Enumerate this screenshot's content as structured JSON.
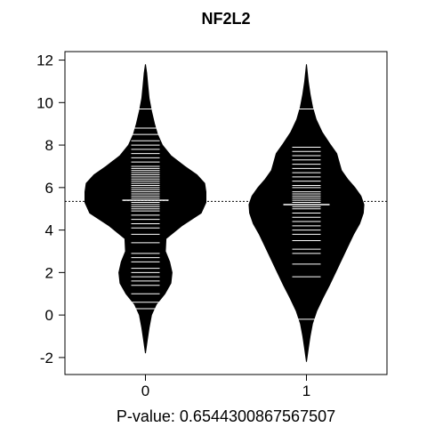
{
  "chart_data": {
    "type": "beanplot",
    "title": "NF2L2",
    "xlabel": "P-value: 0.654430086756750​7",
    "ylabel": "",
    "categories": [
      "0",
      "1"
    ],
    "ylim": [
      -2.8,
      12.4
    ],
    "xlim": [
      0.5,
      2.5
    ],
    "yticks": [
      -2,
      0,
      2,
      4,
      6,
      8,
      10,
      12
    ],
    "ytick_labels": [
      "-2",
      "0",
      "2",
      "4",
      "6",
      "8",
      "10",
      "12"
    ],
    "overall_mean": 5.35,
    "colors": {
      "bean": "#000000",
      "strip": "#ffffff",
      "frame": "#000000"
    },
    "beans": [
      {
        "category": "0",
        "mean": 5.4,
        "density": [
          [
            -1.8,
            0.0
          ],
          [
            -1.2,
            0.03
          ],
          [
            -0.6,
            0.06
          ],
          [
            0.0,
            0.1
          ],
          [
            0.5,
            0.18
          ],
          [
            1.0,
            0.32
          ],
          [
            1.5,
            0.42
          ],
          [
            2.0,
            0.44
          ],
          [
            2.5,
            0.4
          ],
          [
            3.0,
            0.33
          ],
          [
            3.6,
            0.34
          ],
          [
            4.2,
            0.6
          ],
          [
            4.8,
            0.92
          ],
          [
            5.3,
            1.0
          ],
          [
            5.8,
            1.0
          ],
          [
            6.2,
            0.98
          ],
          [
            6.6,
            0.85
          ],
          [
            7.0,
            0.65
          ],
          [
            7.5,
            0.42
          ],
          [
            8.0,
            0.28
          ],
          [
            8.5,
            0.2
          ],
          [
            9.0,
            0.15
          ],
          [
            9.6,
            0.1
          ],
          [
            10.2,
            0.06
          ],
          [
            10.8,
            0.04
          ],
          [
            11.4,
            0.02
          ],
          [
            11.8,
            0.0
          ]
        ],
        "observations": [
          0.3,
          0.6,
          1.0,
          1.4,
          1.6,
          1.8,
          2.0,
          2.2,
          2.5,
          2.7,
          2.9,
          3.4,
          3.8,
          4.1,
          4.3,
          4.5,
          4.7,
          4.9,
          5.0,
          5.1,
          5.2,
          5.3,
          5.4,
          5.5,
          5.6,
          5.7,
          5.8,
          5.9,
          6.0,
          6.1,
          6.2,
          6.3,
          6.4,
          6.5,
          6.6,
          6.7,
          6.8,
          6.9,
          7.0,
          7.2,
          7.4,
          7.6,
          7.8,
          8.0,
          8.2,
          8.5,
          8.8,
          9.7
        ]
      },
      {
        "category": "1",
        "mean": 5.2,
        "density": [
          [
            -2.2,
            0.0
          ],
          [
            -1.6,
            0.03
          ],
          [
            -1.0,
            0.06
          ],
          [
            -0.4,
            0.1
          ],
          [
            0.2,
            0.17
          ],
          [
            0.8,
            0.27
          ],
          [
            1.4,
            0.38
          ],
          [
            2.0,
            0.48
          ],
          [
            2.6,
            0.58
          ],
          [
            3.2,
            0.68
          ],
          [
            3.8,
            0.78
          ],
          [
            4.3,
            0.88
          ],
          [
            4.8,
            0.94
          ],
          [
            5.2,
            0.95
          ],
          [
            5.6,
            0.9
          ],
          [
            6.0,
            0.8
          ],
          [
            6.4,
            0.68
          ],
          [
            6.8,
            0.58
          ],
          [
            7.2,
            0.54
          ],
          [
            7.6,
            0.5
          ],
          [
            8.0,
            0.4
          ],
          [
            8.6,
            0.26
          ],
          [
            9.2,
            0.16
          ],
          [
            9.8,
            0.1
          ],
          [
            10.4,
            0.06
          ],
          [
            11.0,
            0.03
          ],
          [
            11.8,
            0.0
          ]
        ],
        "observations": [
          -0.2,
          1.8,
          2.4,
          2.9,
          3.1,
          3.5,
          3.8,
          4.0,
          4.2,
          4.4,
          4.6,
          4.8,
          5.0,
          5.1,
          5.2,
          5.3,
          5.4,
          5.5,
          5.6,
          5.7,
          5.8,
          6.0,
          6.1,
          6.3,
          6.5,
          6.7,
          6.9,
          7.1,
          7.3,
          7.5,
          7.7,
          7.9,
          9.7
        ]
      }
    ]
  }
}
